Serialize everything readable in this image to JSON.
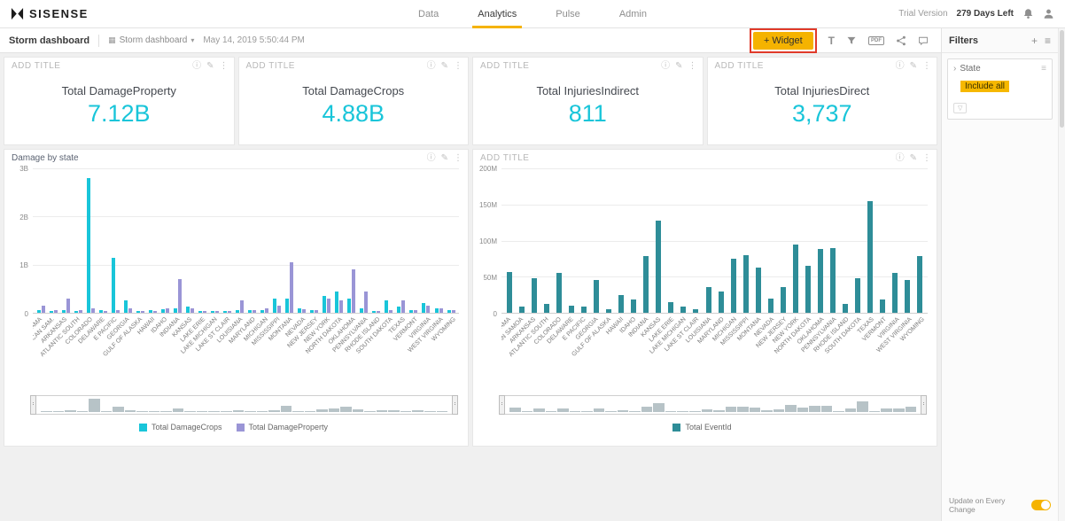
{
  "topnav": {
    "brand": "SISENSE",
    "tabs": [
      {
        "label": "Data",
        "active": false
      },
      {
        "label": "Analytics",
        "active": true
      },
      {
        "label": "Pulse",
        "active": false
      },
      {
        "label": "Admin",
        "active": false
      }
    ],
    "trial_label": "Trial Version",
    "days_left": "279 Days Left"
  },
  "toolbar": {
    "dashboard_title": "Storm dashboard",
    "dashboard_selector": "Storm dashboard",
    "timestamp": "May 14, 2019 5:50:44 PM",
    "widget_button_label": "+ Widget"
  },
  "icons": {
    "info": "ⓘ",
    "edit": "✎",
    "more": "⋮",
    "caret_down": "▾",
    "chevron_right": "›",
    "plus": "+",
    "menu": "≡",
    "text_widget": "T",
    "pdf": "PDF",
    "grid": "▦",
    "funnel": "▽"
  },
  "kpis": [
    {
      "title": "ADD TITLE",
      "label": "Total DamageProperty",
      "value": "7.12B"
    },
    {
      "title": "ADD TITLE",
      "label": "Total DamageCrops",
      "value": "4.88B"
    },
    {
      "title": "ADD TITLE",
      "label": "Total InjuriesIndirect",
      "value": "811"
    },
    {
      "title": "ADD TITLE",
      "label": "Total InjuriesDirect",
      "value": "3,737"
    }
  ],
  "filters_panel": {
    "title": "Filters",
    "filter_field": "State",
    "filter_value": "Include all",
    "footer_label": "Update on Every Change"
  },
  "colors": {
    "accent": "#f5b300",
    "kpi_value": "#19c5d9",
    "highlight_box": "#e03a2a"
  },
  "chart_data": [
    {
      "type": "bar",
      "title": "Damage by state",
      "title_is_placeholder": false,
      "categories": [
        "ALABAMA",
        "AMERICAN SAM.",
        "ARKANSAS",
        "ATLANTIC SOUTH",
        "COLORADO",
        "DELAWARE",
        "E PACIFIC",
        "GEORGIA",
        "GULF OF ALASKA",
        "HAWAII",
        "IDAHO",
        "INDIANA",
        "KANSAS",
        "LAKE ERIE",
        "LAKE MICHIGAN",
        "LAKE ST CLAIR",
        "LOUISIANA",
        "MARYLAND",
        "MICHIGAN",
        "MISSISSIPPI",
        "MONTANA",
        "NEVADA",
        "NEW JERSEY",
        "NEW YORK",
        "NORTH DAKOTA",
        "OKLAHOMA",
        "PENNSYLVANIA",
        "RHODE ISLAND",
        "SOUTH DAKOTA",
        "TEXAS",
        "VERMONT",
        "VIRGINIA",
        "WEST VIRGINIA",
        "WYOMING"
      ],
      "value_unit": "billions",
      "ylim": [
        0,
        3
      ],
      "ymax": 3,
      "yticks": [
        "3B",
        "2B",
        "1B",
        "0"
      ],
      "grid": true,
      "legend_position": "bottom",
      "navigator": true,
      "series": [
        {
          "name": "Total DamageCrops",
          "color": "#19c5d9",
          "values": [
            0.06,
            0.02,
            0.05,
            0.03,
            2.8,
            0.05,
            1.15,
            0.25,
            0.02,
            0.05,
            0.08,
            0.1,
            0.12,
            0.02,
            0.02,
            0.01,
            0.05,
            0.05,
            0.06,
            0.3,
            0.3,
            0.1,
            0.05,
            0.35,
            0.45,
            0.3,
            0.1,
            0.02,
            0.25,
            0.12,
            0.05,
            0.2,
            0.1,
            0.05
          ]
        },
        {
          "name": "Total DamageProperty",
          "color": "#9a95d6",
          "values": [
            0.15,
            0.05,
            0.3,
            0.05,
            0.1,
            0.04,
            0.05,
            0.1,
            0.01,
            0.04,
            0.1,
            0.7,
            0.1,
            0.03,
            0.02,
            0.01,
            0.25,
            0.05,
            0.1,
            0.15,
            1.05,
            0.08,
            0.06,
            0.3,
            0.25,
            0.9,
            0.45,
            0.03,
            0.05,
            0.25,
            0.05,
            0.15,
            0.1,
            0.05
          ]
        }
      ]
    },
    {
      "type": "bar",
      "title": "ADD TITLE",
      "title_is_placeholder": true,
      "categories": [
        "ALABAMA",
        "AMERICAN SAMOA",
        "ARKANSAS",
        "ATLANTIC SOUTH",
        "COLORADO",
        "DELAWARE",
        "E PACIFIC",
        "GEORGIA",
        "GULF OF ALASKA",
        "HAWAII",
        "IDAHO",
        "INDIANA",
        "KANSAS",
        "LAKE ERIE",
        "LAKE MICHIGAN",
        "LAKE ST CLAIR",
        "LOUISIANA",
        "MARYLAND",
        "MICHIGAN",
        "MISSISSIPPI",
        "MONTANA",
        "NEVADA",
        "NEW JERSEY",
        "NEW YORK",
        "NORTH DAKOTA",
        "OKLAHOMA",
        "PENNSYLVANIA",
        "RHODE ISLAND",
        "SOUTH DAKOTA",
        "TEXAS",
        "VERMONT",
        "VIRGINIA",
        "WEST VIRGINIA",
        "WYOMING"
      ],
      "value_unit": "millions",
      "ylim": [
        0,
        200
      ],
      "ymax": 200,
      "yticks": [
        "200M",
        "150M",
        "100M",
        "50M",
        "0"
      ],
      "grid": true,
      "legend_position": "bottom",
      "navigator": true,
      "series": [
        {
          "name": "Total EventId",
          "color": "#2e8d98",
          "values": [
            57,
            8,
            48,
            12,
            55,
            10,
            8,
            45,
            5,
            25,
            18,
            78,
            128,
            15,
            8,
            5,
            35,
            30,
            75,
            80,
            62,
            20,
            35,
            95,
            65,
            88,
            90,
            12,
            48,
            155,
            18,
            55,
            45,
            78
          ]
        }
      ]
    }
  ]
}
